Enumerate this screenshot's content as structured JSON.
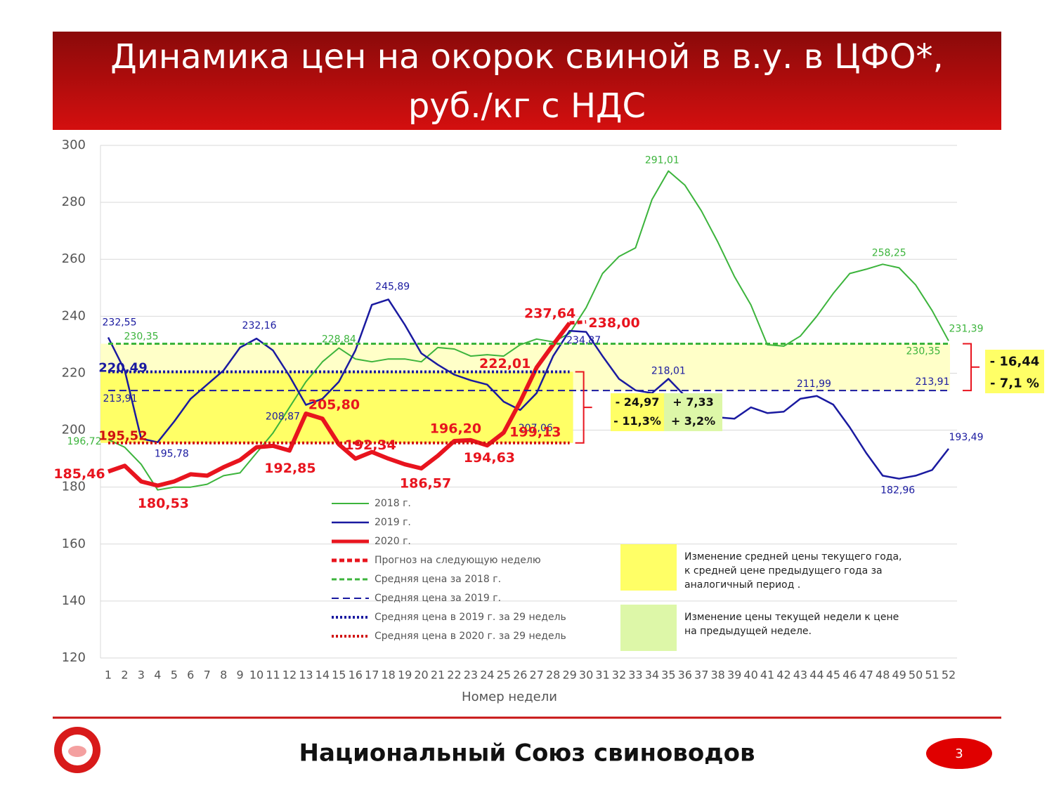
{
  "chart_data": {
    "type": "line",
    "title": [
      "Динамика цен на окорок свиной в в.у. в ЦФО*,",
      "руб./кг с НДС"
    ],
    "x_label": "Номер недели",
    "categories": [
      1,
      2,
      3,
      4,
      5,
      6,
      7,
      8,
      9,
      10,
      11,
      12,
      13,
      14,
      15,
      16,
      17,
      18,
      19,
      20,
      21,
      22,
      23,
      24,
      25,
      26,
      27,
      28,
      29,
      30,
      31,
      32,
      33,
      34,
      35,
      36,
      37,
      38,
      39,
      40,
      41,
      42,
      43,
      44,
      45,
      46,
      47,
      48,
      49,
      50,
      51,
      52
    ],
    "ylim": [
      120,
      300
    ],
    "yticks": [
      120,
      140,
      160,
      180,
      200,
      220,
      240,
      260,
      280,
      300
    ],
    "grid": true,
    "series": [
      {
        "name": "2018 г.",
        "color": "#3cb43c",
        "line_style": "solid",
        "values": [
          196.72,
          194,
          188,
          179,
          180,
          180,
          181,
          184,
          185,
          192,
          199,
          208,
          217,
          224,
          228.84,
          225,
          224,
          225,
          225,
          224,
          229,
          228.5,
          226,
          226.5,
          226,
          230,
          232,
          231,
          234,
          243,
          255,
          261,
          264,
          281,
          291.01,
          286,
          277,
          266,
          254,
          244,
          230,
          229.5,
          233,
          240,
          248,
          255,
          256.5,
          258.25,
          257,
          251,
          242,
          231.39
        ],
        "value_labels": [
          "196,72",
          null,
          null,
          null,
          null,
          null,
          null,
          null,
          null,
          null,
          null,
          null,
          null,
          null,
          "228,84",
          null,
          null,
          null,
          null,
          null,
          null,
          null,
          null,
          null,
          null,
          null,
          null,
          null,
          null,
          null,
          null,
          null,
          null,
          null,
          "291,01",
          null,
          null,
          null,
          null,
          null,
          null,
          null,
          null,
          null,
          null,
          null,
          null,
          "258,25",
          null,
          null,
          null,
          "231,39"
        ]
      },
      {
        "name": "2019 г.",
        "color": "#1a1aa0",
        "line_style": "solid",
        "values": [
          232.55,
          221,
          197,
          195.78,
          203,
          211,
          216,
          221,
          229,
          232.16,
          228,
          219,
          208.87,
          211,
          217,
          228,
          244,
          245.89,
          237,
          227,
          223,
          219.5,
          217.5,
          216,
          210,
          207.06,
          213,
          226,
          234.87,
          234.5,
          226,
          218,
          214,
          213,
          218.01,
          212,
          210,
          204.5,
          204,
          208,
          206,
          206.5,
          211,
          211.99,
          209,
          201,
          192,
          184,
          182.96,
          184,
          186,
          193.49
        ],
        "value_labels": [
          "232,55",
          null,
          null,
          "195,78",
          null,
          null,
          null,
          null,
          null,
          "232,16",
          null,
          null,
          "208,87",
          null,
          null,
          null,
          null,
          "245,89",
          null,
          null,
          null,
          null,
          null,
          null,
          null,
          "207,06",
          null,
          null,
          "234,87",
          null,
          null,
          null,
          null,
          null,
          "218,01",
          null,
          null,
          null,
          null,
          null,
          null,
          null,
          null,
          "211,99",
          null,
          null,
          null,
          null,
          "182,96",
          null,
          null,
          "193,49"
        ]
      },
      {
        "name": "2020 г.",
        "color": "#e8141e",
        "line_style": "solid",
        "values": [
          185.46,
          187.5,
          182,
          180.53,
          182,
          184.5,
          184,
          187,
          189.5,
          194,
          194.5,
          192.85,
          205.8,
          204,
          195,
          190,
          192.34,
          190,
          188,
          186.57,
          191,
          196.2,
          196.5,
          194.63,
          199.13,
          210,
          222.01,
          230,
          237.64,
          null,
          null,
          null,
          null,
          null,
          null,
          null,
          null,
          null,
          null,
          null,
          null,
          null,
          null,
          null,
          null,
          null,
          null,
          null,
          null,
          null,
          null,
          null
        ],
        "value_labels": [
          "185,46",
          null,
          null,
          "180,53",
          null,
          null,
          null,
          null,
          null,
          null,
          null,
          "192,85",
          "205,80",
          null,
          null,
          null,
          "192,34",
          null,
          null,
          "186,57",
          null,
          "196,20",
          null,
          "194,63",
          "199,13",
          null,
          "222,01",
          null,
          "237,64",
          null,
          null,
          null,
          null,
          null,
          null,
          null,
          null,
          null,
          null,
          null,
          null,
          null,
          null,
          null,
          null,
          null,
          null,
          null,
          null,
          null,
          null,
          null
        ]
      },
      {
        "name": "Прогноз на следующую неделю",
        "color": "#e8141e",
        "line_style": "dashed",
        "values": [
          null,
          null,
          null,
          null,
          null,
          null,
          null,
          null,
          null,
          null,
          null,
          null,
          null,
          null,
          null,
          null,
          null,
          null,
          null,
          null,
          null,
          null,
          null,
          null,
          null,
          null,
          null,
          null,
          237.64,
          238.0,
          null,
          null,
          null,
          null,
          null,
          null,
          null,
          null,
          null,
          null,
          null,
          null,
          null,
          null,
          null,
          null,
          null,
          null,
          null,
          null,
          null,
          null
        ],
        "value_labels": [
          null,
          null,
          null,
          null,
          null,
          null,
          null,
          null,
          null,
          null,
          null,
          null,
          null,
          null,
          null,
          null,
          null,
          null,
          null,
          null,
          null,
          null,
          null,
          null,
          null,
          null,
          null,
          null,
          null,
          "238,00",
          null,
          null,
          null,
          null,
          null,
          null,
          null,
          null,
          null,
          null,
          null,
          null,
          null,
          null,
          null,
          null,
          null,
          null,
          null,
          null,
          null,
          null
        ]
      },
      {
        "name": "Средняя цена за 2018 г.",
        "color": "#3cb43c",
        "line_style": "dashed",
        "values": [
          230.35,
          230.35,
          230.35,
          230.35,
          230.35,
          230.35,
          230.35,
          230.35,
          230.35,
          230.35,
          230.35,
          230.35,
          230.35,
          230.35,
          230.35,
          230.35,
          230.35,
          230.35,
          230.35,
          230.35,
          230.35,
          230.35,
          230.35,
          230.35,
          230.35,
          230.35,
          230.35,
          230.35,
          230.35,
          230.35,
          230.35,
          230.35,
          230.35,
          230.35,
          230.35,
          230.35,
          230.35,
          230.35,
          230.35,
          230.35,
          230.35,
          230.35,
          230.35,
          230.35,
          230.35,
          230.35,
          230.35,
          230.35,
          230.35,
          230.35,
          230.35,
          230.35
        ],
        "value_labels": [
          "230,35",
          null,
          null,
          null,
          null,
          null,
          null,
          null,
          null,
          null,
          null,
          null,
          null,
          null,
          null,
          null,
          null,
          null,
          null,
          null,
          null,
          null,
          null,
          null,
          null,
          null,
          null,
          null,
          null,
          null,
          null,
          null,
          null,
          null,
          null,
          null,
          null,
          null,
          null,
          null,
          null,
          null,
          null,
          null,
          null,
          null,
          null,
          null,
          null,
          null,
          null,
          "230,35"
        ]
      },
      {
        "name": "Средняя цена за 2019 г.",
        "color": "#1a1aa0",
        "line_style": "longdash",
        "values": [
          213.91,
          213.91,
          213.91,
          213.91,
          213.91,
          213.91,
          213.91,
          213.91,
          213.91,
          213.91,
          213.91,
          213.91,
          213.91,
          213.91,
          213.91,
          213.91,
          213.91,
          213.91,
          213.91,
          213.91,
          213.91,
          213.91,
          213.91,
          213.91,
          213.91,
          213.91,
          213.91,
          213.91,
          213.91,
          213.91,
          213.91,
          213.91,
          213.91,
          213.91,
          213.91,
          213.91,
          213.91,
          213.91,
          213.91,
          213.91,
          213.91,
          213.91,
          213.91,
          213.91,
          213.91,
          213.91,
          213.91,
          213.91,
          213.91,
          213.91,
          213.91,
          213.91
        ],
        "value_labels": [
          "213,91",
          null,
          null,
          null,
          null,
          null,
          null,
          null,
          null,
          null,
          null,
          null,
          null,
          null,
          null,
          null,
          null,
          null,
          null,
          null,
          null,
          null,
          null,
          null,
          null,
          null,
          null,
          null,
          null,
          null,
          null,
          null,
          null,
          null,
          null,
          null,
          null,
          null,
          null,
          null,
          null,
          null,
          null,
          null,
          null,
          null,
          null,
          null,
          null,
          null,
          null,
          "213,91"
        ]
      },
      {
        "name": "Средняя цена в 2019 г. за 29 недель",
        "color": "#1a1aa0",
        "line_style": "dotted",
        "values": [
          220.49,
          220.49,
          220.49,
          220.49,
          220.49,
          220.49,
          220.49,
          220.49,
          220.49,
          220.49,
          220.49,
          220.49,
          220.49,
          220.49,
          220.49,
          220.49,
          220.49,
          220.49,
          220.49,
          220.49,
          220.49,
          220.49,
          220.49,
          220.49,
          220.49,
          220.49,
          220.49,
          220.49,
          220.49,
          null,
          null,
          null,
          null,
          null,
          null,
          null,
          null,
          null,
          null,
          null,
          null,
          null,
          null,
          null,
          null,
          null,
          null,
          null,
          null,
          null,
          null,
          null
        ],
        "value_labels": [
          "220,49",
          null,
          null,
          null,
          null,
          null,
          null,
          null,
          null,
          null,
          null,
          null,
          null,
          null,
          null,
          null,
          null,
          null,
          null,
          null,
          null,
          null,
          null,
          null,
          null,
          null,
          null,
          null,
          null,
          null,
          null,
          null,
          null,
          null,
          null,
          null,
          null,
          null,
          null,
          null,
          null,
          null,
          null,
          null,
          null,
          null,
          null,
          null,
          null,
          null,
          null,
          null
        ]
      },
      {
        "name": "Средняя цена в 2020 г. за 29 недель",
        "color": "#d01010",
        "line_style": "dotted",
        "values": [
          195.52,
          195.52,
          195.52,
          195.52,
          195.52,
          195.52,
          195.52,
          195.52,
          195.52,
          195.52,
          195.52,
          195.52,
          195.52,
          195.52,
          195.52,
          195.52,
          195.52,
          195.52,
          195.52,
          195.52,
          195.52,
          195.52,
          195.52,
          195.52,
          195.52,
          195.52,
          195.52,
          195.52,
          195.52,
          null,
          null,
          null,
          null,
          null,
          null,
          null,
          null,
          null,
          null,
          null,
          null,
          null,
          null,
          null,
          null,
          null,
          null,
          null,
          null,
          null,
          null,
          null
        ],
        "value_labels": [
          "195,52",
          null,
          null,
          null,
          null,
          null,
          null,
          null,
          null,
          null,
          null,
          null,
          null,
          null,
          null,
          null,
          null,
          null,
          null,
          null,
          null,
          null,
          null,
          null,
          null,
          null,
          null,
          null,
          null,
          null,
          null,
          null,
          null,
          null,
          null,
          null,
          null,
          null,
          null,
          null,
          null,
          null,
          null,
          null,
          null,
          null,
          null,
          null,
          null,
          null,
          null,
          null
        ]
      }
    ],
    "annotations": [
      {
        "lines": [
          "- 24,97",
          "- 11,3%"
        ],
        "color": "#ffff66"
      },
      {
        "lines": [
          "+ 7,33",
          "+ 3,2%"
        ],
        "color": "#ddf7a8"
      },
      {
        "lines": [
          "- 16,44",
          "- 7,1 %"
        ],
        "color": "#ffff66"
      }
    ],
    "notes": [
      {
        "color": "#ffff66",
        "lines": [
          "Изменение средней цены текущего года,",
          "к средней цене предыдущего года за",
          "аналогичный период ."
        ]
      },
      {
        "color": "#ddf7a8",
        "lines": [
          "Изменение цены текущей недели к цене",
          "на предыдущей неделе."
        ]
      }
    ]
  },
  "footer": {
    "organization": "Национальный Союз свиноводов",
    "page": "3"
  }
}
